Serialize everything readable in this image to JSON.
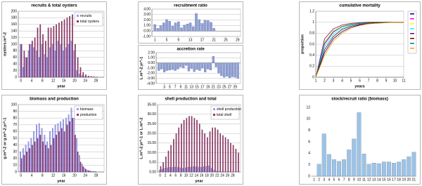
{
  "chart_data": [
    {
      "type": "bar",
      "title": "recruits & total oysters",
      "xlabel": "year",
      "ylabel": "oysters.m^-2",
      "x": [
        0,
        1,
        2,
        3,
        4,
        5,
        6,
        7,
        8,
        9,
        10,
        11,
        12,
        13,
        14,
        15,
        16,
        17,
        18,
        19,
        20,
        21,
        22,
        23,
        24,
        25,
        26,
        27,
        28,
        29,
        30
      ],
      "series": [
        {
          "name": "recruits",
          "color": "#9999ff",
          "values": [
            100,
            30,
            60,
            80,
            100,
            90,
            80,
            60,
            100,
            70,
            60,
            90,
            100,
            80,
            110,
            100,
            80,
            90,
            100,
            110,
            80,
            20,
            10,
            5,
            3,
            2,
            1,
            1,
            0,
            0,
            0
          ]
        },
        {
          "name": "total oysters",
          "color": "#993366",
          "values": [
            100,
            80,
            60,
            100,
            110,
            120,
            150,
            160,
            130,
            110,
            150,
            150,
            155,
            160,
            165,
            170,
            175,
            180,
            185,
            190,
            100,
            60,
            30,
            15,
            8,
            4,
            3,
            2,
            1,
            0,
            0
          ]
        }
      ],
      "xlim": [
        -1,
        31
      ],
      "ylim": [
        0,
        200
      ],
      "xticks": [
        0,
        4,
        8,
        12,
        16,
        20,
        24,
        28
      ],
      "yticks": [
        0,
        20,
        40,
        60,
        80,
        100,
        120,
        140,
        160,
        180,
        200
      ],
      "grid": true,
      "legend": "top-right"
    },
    {
      "type": "bar",
      "title": "recruitment ratio",
      "x": [
        1,
        2,
        3,
        4,
        5,
        6,
        7,
        8,
        9,
        10,
        11,
        12,
        13,
        14,
        15,
        16,
        17,
        18,
        19,
        20,
        21
      ],
      "values": [
        1.2,
        0.5,
        1.0,
        1.5,
        2.1,
        1.8,
        0.9,
        1.5,
        1.7,
        0.6,
        1.1,
        1.3,
        1.5,
        0.8,
        3.2,
        2.1,
        1.4,
        2.0,
        1.9,
        1.6,
        0.5
      ],
      "color": "#8c9fd8",
      "xlim": [
        0,
        30
      ],
      "ylim": [
        -1,
        4
      ],
      "xticks": [
        1,
        5,
        9,
        13,
        17,
        21,
        25,
        29
      ],
      "yticks": [
        {
          "value": -1,
          "label": "-1.00"
        },
        {
          "value": 0,
          "label": "0.00"
        },
        {
          "value": 1,
          "label": "1.00"
        },
        {
          "value": 2,
          "label": "2.00"
        },
        {
          "value": 3,
          "label": "3.00"
        },
        {
          "value": 4,
          "label": "4.00"
        }
      ],
      "grid": true
    },
    {
      "type": "bar",
      "title": "accretion rate",
      "ylabel": "L.m^-2.yr^-1",
      "x": [
        1,
        2,
        3,
        4,
        5,
        6,
        7,
        8,
        9,
        10,
        11,
        12,
        13,
        14,
        15,
        16,
        17,
        18,
        19,
        20,
        21,
        22,
        23,
        24,
        25,
        26,
        27,
        28,
        29,
        30
      ],
      "values": [
        -1.5,
        -1.2,
        -1.8,
        -1.5,
        -1.4,
        -1.3,
        -1.5,
        -1.2,
        -0.8,
        -1.0,
        -0.5,
        -1.6,
        -1.1,
        -1.7,
        -1.3,
        -1.5,
        -1.0,
        -1.8,
        -1.2,
        -1.4,
        1.3,
        -0.8,
        -2.0,
        -2.5,
        -2.8,
        -2.6,
        -2.9,
        -2.7,
        -2.8,
        -3.0
      ],
      "color": "#8c9fd8",
      "xlim": [
        0,
        31
      ],
      "ylim": [
        -4,
        2
      ],
      "xticks": [
        3,
        5,
        7,
        9,
        11,
        13,
        15,
        17,
        19,
        21,
        23,
        25,
        27,
        29
      ],
      "yticks": [
        {
          "value": -4,
          "label": "-4.00"
        },
        {
          "value": -3,
          "label": "-3.00"
        },
        {
          "value": -2,
          "label": "-2.00"
        },
        {
          "value": -1,
          "label": "-1.00"
        },
        {
          "value": 0,
          "label": "0.00"
        },
        {
          "value": 1,
          "label": "1.00"
        },
        {
          "value": 2,
          "label": "2.00"
        }
      ],
      "grid": true
    },
    {
      "type": "line",
      "title": "cumulative mortality",
      "xlabel": "years",
      "ylabel": "proportion",
      "x": [
        1,
        2,
        3,
        4,
        5,
        6,
        7,
        8,
        9,
        10,
        11
      ],
      "series": [
        {
          "color": "#000080",
          "values": [
            0,
            0.45,
            0.7,
            0.83,
            0.91,
            0.95,
            0.97,
            0.99,
            1,
            1,
            1
          ]
        },
        {
          "color": "#ff00ff",
          "values": [
            0,
            0.6,
            0.82,
            0.92,
            0.96,
            0.98,
            0.99,
            1,
            1,
            1,
            1
          ]
        },
        {
          "color": "#ffff00",
          "values": [
            0,
            0.65,
            0.85,
            0.93,
            0.97,
            0.99,
            1,
            1,
            1,
            1,
            1
          ]
        },
        {
          "color": "#00ffff",
          "values": [
            0,
            0.55,
            0.78,
            0.89,
            0.95,
            0.97,
            0.99,
            1,
            1,
            1,
            1
          ]
        },
        {
          "color": "#800080",
          "values": [
            0,
            0.7,
            0.88,
            0.95,
            0.98,
            0.99,
            1,
            1,
            1,
            1,
            1
          ]
        },
        {
          "color": "#800000",
          "values": [
            0,
            0.5,
            0.74,
            0.87,
            0.93,
            0.96,
            0.98,
            0.99,
            1,
            1,
            1
          ]
        },
        {
          "color": "#008080",
          "values": [
            0,
            0.62,
            0.83,
            0.92,
            0.96,
            0.98,
            0.99,
            1,
            1,
            1,
            1
          ]
        },
        {
          "color": "#ff9900",
          "values": [
            0,
            0.4,
            0.66,
            0.8,
            0.89,
            0.94,
            0.97,
            0.98,
            0.99,
            1,
            1
          ]
        }
      ],
      "xlim": [
        1,
        11
      ],
      "ylim": [
        0,
        1.2
      ],
      "xticks": [
        1,
        2,
        3,
        4,
        5,
        6,
        7,
        8,
        9,
        10,
        11
      ],
      "yticks": [
        0,
        0.2,
        0.4,
        0.6,
        0.8,
        1,
        1.2
      ],
      "grid": true,
      "legend": "right"
    },
    {
      "type": "bar",
      "title": "biomass and production",
      "xlabel": "year",
      "ylabel": "g.m^-2 or g.m^-2.yr^-1",
      "x": [
        0,
        1,
        2,
        3,
        4,
        5,
        6,
        7,
        8,
        9,
        10,
        11,
        12,
        13,
        14,
        15,
        16,
        17,
        18,
        19,
        20,
        21,
        22,
        23,
        24,
        25,
        26,
        27,
        28,
        29,
        30
      ],
      "series": [
        {
          "name": "biomass",
          "color": "#9999ff",
          "values": [
            30,
            35,
            40,
            45,
            50,
            60,
            70,
            72,
            65,
            55,
            45,
            60,
            65,
            70,
            72,
            75,
            78,
            80,
            85,
            95,
            80,
            50,
            25,
            12,
            6,
            3,
            2,
            1,
            1,
            0,
            0
          ]
        },
        {
          "name": "production",
          "color": "#993366",
          "values": [
            20,
            25,
            30,
            35,
            40,
            45,
            50,
            55,
            45,
            40,
            35,
            40,
            50,
            55,
            60,
            65,
            60,
            70,
            75,
            80,
            55,
            30,
            15,
            8,
            4,
            2,
            1,
            1,
            0,
            0,
            0
          ]
        }
      ],
      "xlim": [
        -1,
        31
      ],
      "ylim": [
        0,
        100
      ],
      "xticks": [
        0,
        4,
        8,
        12,
        16,
        20,
        24,
        28
      ],
      "yticks": [
        0,
        10,
        20,
        30,
        40,
        50,
        60,
        70,
        80,
        90,
        100
      ],
      "grid": true,
      "legend": "top-right"
    },
    {
      "type": "bar",
      "title": "shell production and total",
      "xlabel": "year",
      "ylabel": "L.m^-2.yr^-1 or L.m^-2",
      "x": [
        0,
        1,
        2,
        3,
        4,
        5,
        6,
        7,
        8,
        9,
        10,
        11,
        12,
        13,
        14,
        15,
        16,
        17,
        18,
        19,
        20,
        21,
        22,
        23,
        24,
        25,
        26,
        27,
        28,
        29,
        30
      ],
      "series": [
        {
          "name": "shell production",
          "color": "#9999ff",
          "values": [
            1,
            1.5,
            2,
            2.2,
            2.4,
            2.5,
            2.6,
            2.4,
            2.2,
            2,
            2.2,
            2.5,
            2.6,
            2.8,
            2.7,
            2.6,
            2.5,
            2.8,
            3,
            3.2,
            2,
            1,
            0.5,
            0.3,
            0.2,
            0.1,
            0.1,
            0.1,
            0,
            0,
            0
          ]
        },
        {
          "name": "total shell",
          "color": "#993366",
          "values": [
            3,
            5,
            8,
            11,
            14,
            17,
            20,
            23,
            25,
            27,
            28,
            29,
            29,
            28,
            27,
            25,
            22,
            20,
            18,
            21,
            23,
            23,
            22,
            20,
            19,
            18,
            17,
            15,
            14,
            12,
            10
          ]
        }
      ],
      "xlim": [
        -1,
        31
      ],
      "ylim": [
        0,
        35
      ],
      "xticks": [
        0,
        2,
        4,
        6,
        8,
        10,
        12,
        14,
        16,
        18,
        20,
        22,
        24,
        26,
        28
      ],
      "yticks": [
        {
          "value": 0,
          "label": "0.00"
        },
        {
          "value": 5,
          "label": "5.00"
        },
        {
          "value": 10,
          "label": "10.00"
        },
        {
          "value": 15,
          "label": "15.00"
        },
        {
          "value": 20,
          "label": "20.00"
        },
        {
          "value": 25,
          "label": "25.00"
        },
        {
          "value": 30,
          "label": "30.00"
        },
        {
          "value": 35,
          "label": "35.00"
        }
      ],
      "grid": true,
      "legend": "top-right"
    },
    {
      "type": "bar",
      "title": "stock/recruit ratio (biomass)",
      "categories": [
        "1",
        "2",
        "3",
        "4",
        "5",
        "6",
        "7",
        "8",
        "9",
        "10",
        "11",
        "12",
        "13",
        "14",
        "15",
        "16",
        "17",
        "18",
        "19",
        "20",
        "21"
      ],
      "values": [
        null,
        2.1,
        7.4,
        3.8,
        2.9,
        2.6,
        2.9,
        4.6,
        6.5,
        11.1,
        3.9,
        2.1,
        2.3,
        2.2,
        2.5,
        2.5,
        2.3,
        2.5,
        2.9,
        3.4,
        4.2
      ],
      "color": "#9cc3e6",
      "ylim": [
        0,
        12
      ],
      "yticks": [
        0,
        2,
        4,
        6,
        8,
        10,
        12
      ],
      "grid": false
    }
  ]
}
